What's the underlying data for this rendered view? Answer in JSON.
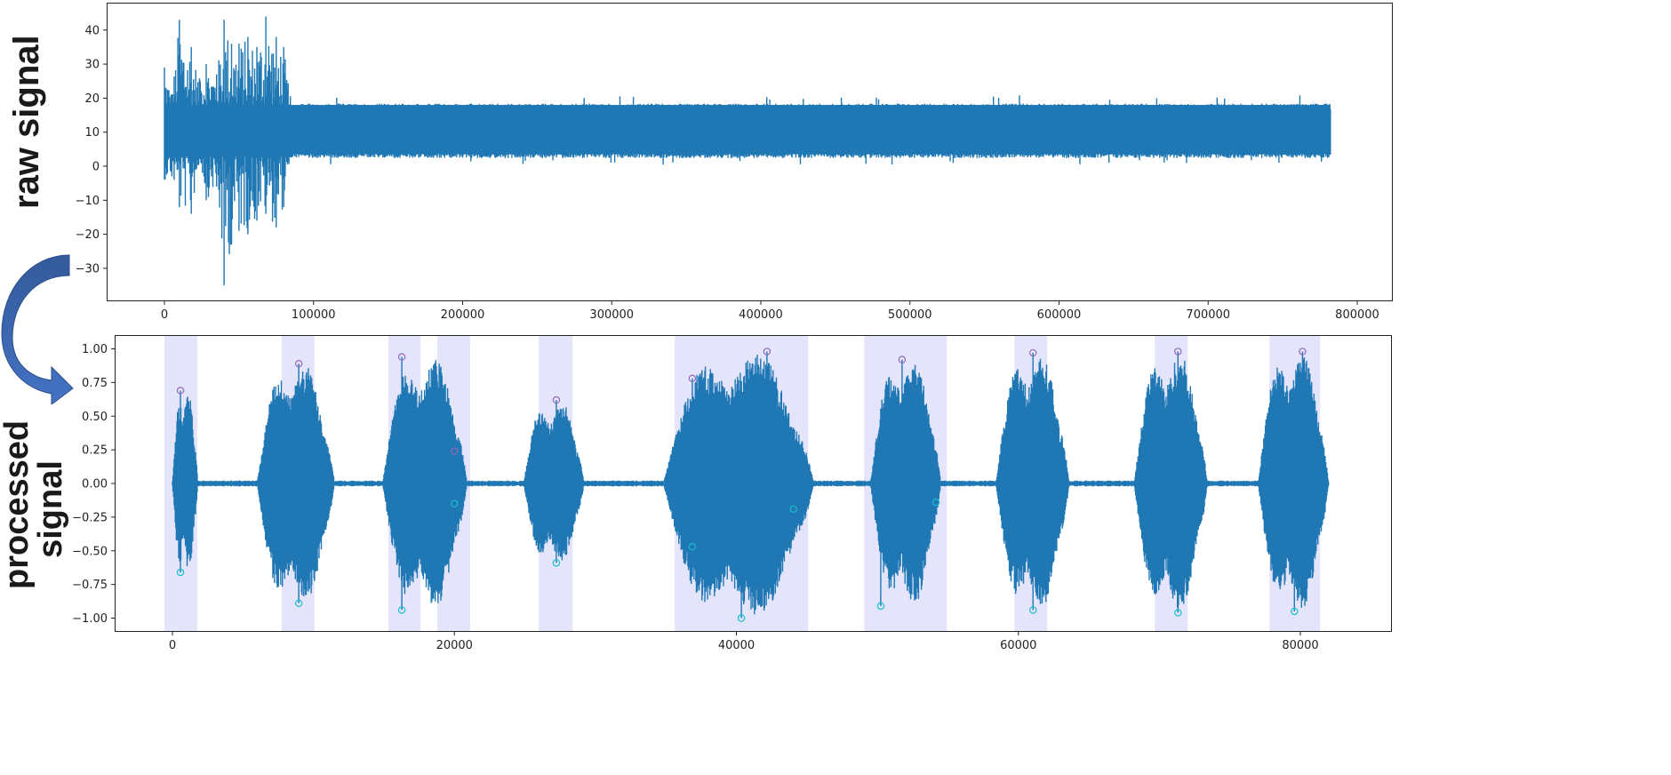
{
  "labels": {
    "raw": "raw signal",
    "processed_line1": "processed",
    "processed_line2": "signal"
  },
  "colors": {
    "signal": "#1f77b4",
    "band": "#e4e4fb",
    "peak_marker": "#9467bd",
    "trough_marker": "#17becf",
    "arrow_top": "#335a9a",
    "arrow_bottom": "#4472c4"
  },
  "chart_data": [
    {
      "type": "line",
      "title": "",
      "ylabel": "raw signal",
      "xlabel": "",
      "xlim": [
        -95000,
        822000
      ],
      "ylim": [
        -39,
        47
      ],
      "x_ticks": [
        0,
        100000,
        200000,
        300000,
        400000,
        500000,
        600000,
        700000,
        800000
      ],
      "x_tick_labels": [
        "0",
        "100000",
        "200000",
        "300000",
        "400000",
        "500000",
        "600000",
        "700000",
        "800000"
      ],
      "y_ticks": [
        40,
        30,
        20,
        10,
        0,
        -10,
        -20,
        -30
      ],
      "y_tick_labels": [
        "40",
        "30",
        "20",
        "10",
        "0",
        "−10",
        "−20",
        "−30"
      ],
      "grid": false,
      "series": [
        {
          "name": "raw signal",
          "x_range": [
            0,
            782000
          ],
          "baseline": 10,
          "envelope": [
            {
              "x": 0,
              "max": 29,
              "min": -4
            },
            {
              "x": 5000,
              "max": 21,
              "min": -3
            },
            {
              "x": 10000,
              "max": 43,
              "min": -12
            },
            {
              "x": 18000,
              "max": 35,
              "min": -14
            },
            {
              "x": 24000,
              "max": 25,
              "min": 2
            },
            {
              "x": 28000,
              "max": 30,
              "min": -10
            },
            {
              "x": 35000,
              "max": 27,
              "min": -6
            },
            {
              "x": 40000,
              "max": 43,
              "min": -35
            },
            {
              "x": 45000,
              "max": 36,
              "min": -23
            },
            {
              "x": 50000,
              "max": 36,
              "min": -19
            },
            {
              "x": 56000,
              "max": 38,
              "min": -20
            },
            {
              "x": 62000,
              "max": 35,
              "min": -16
            },
            {
              "x": 68000,
              "max": 44,
              "min": -14
            },
            {
              "x": 75000,
              "max": 38,
              "min": -18
            },
            {
              "x": 80000,
              "max": 35,
              "min": -12
            },
            {
              "x": 85000,
              "max": 19,
              "min": 3
            },
            {
              "x": 300000,
              "max": 18.5,
              "min": 3
            },
            {
              "x": 550000,
              "max": 21,
              "min": 2
            },
            {
              "x": 782000,
              "max": 19,
              "min": 1
            }
          ]
        }
      ]
    },
    {
      "type": "line",
      "title": "",
      "ylabel": "processed signal",
      "xlabel": "",
      "xlim": [
        -4100,
        86400
      ],
      "ylim": [
        -1.1,
        1.1
      ],
      "x_ticks": [
        0,
        20000,
        40000,
        60000,
        80000
      ],
      "x_tick_labels": [
        "0",
        "20000",
        "40000",
        "60000",
        "80000"
      ],
      "y_ticks": [
        1.0,
        0.75,
        0.5,
        0.25,
        0.0,
        -0.25,
        -0.5,
        -0.75,
        -1.0
      ],
      "y_tick_labels": [
        "1.00",
        "0.75",
        "0.50",
        "0.25",
        "0.00",
        "−0.25",
        "−0.50",
        "−0.75",
        "−1.00"
      ],
      "grid": false,
      "shaded_regions": [
        [
          -570,
          1760
        ],
        [
          7750,
          10080
        ],
        [
          15320,
          17590
        ],
        [
          18790,
          21120
        ],
        [
          25980,
          28380
        ],
        [
          35630,
          45090
        ],
        [
          49060,
          54930
        ],
        [
          59720,
          62050
        ],
        [
          69680,
          72010
        ],
        [
          77810,
          81400
        ]
      ],
      "peaks": [
        {
          "x": 570,
          "y": 0.69
        },
        {
          "x": 8960,
          "y": 0.89
        },
        {
          "x": 16270,
          "y": 0.94
        },
        {
          "x": 20000,
          "y": 0.24
        },
        {
          "x": 27230,
          "y": 0.62
        },
        {
          "x": 36870,
          "y": 0.78
        },
        {
          "x": 42170,
          "y": 0.98
        },
        {
          "x": 51750,
          "y": 0.92
        },
        {
          "x": 61040,
          "y": 0.97
        },
        {
          "x": 71320,
          "y": 0.98
        },
        {
          "x": 80150,
          "y": 0.98
        }
      ],
      "troughs": [
        {
          "x": 570,
          "y": -0.66
        },
        {
          "x": 8960,
          "y": -0.89
        },
        {
          "x": 16270,
          "y": -0.94
        },
        {
          "x": 20000,
          "y": -0.15
        },
        {
          "x": 27230,
          "y": -0.59
        },
        {
          "x": 36870,
          "y": -0.47
        },
        {
          "x": 40350,
          "y": -1.0
        },
        {
          "x": 44050,
          "y": -0.19
        },
        {
          "x": 50240,
          "y": -0.91
        },
        {
          "x": 54160,
          "y": -0.14
        },
        {
          "x": 61040,
          "y": -0.94
        },
        {
          "x": 71320,
          "y": -0.96
        },
        {
          "x": 79580,
          "y": -0.95
        }
      ],
      "series": [
        {
          "name": "processed signal",
          "x_range": [
            0,
            82000
          ],
          "bursts": [
            {
              "start": 0,
              "end": 1800,
              "max": 0.69,
              "min": -0.66
            },
            {
              "start": 6000,
              "end": 11500,
              "max": 0.89,
              "min": -0.89
            },
            {
              "start": 14900,
              "end": 20900,
              "max": 0.94,
              "min": -0.94
            },
            {
              "start": 24900,
              "end": 29200,
              "max": 0.62,
              "min": -0.59
            },
            {
              "start": 34800,
              "end": 45500,
              "max": 0.98,
              "min": -1.0
            },
            {
              "start": 49500,
              "end": 54500,
              "max": 0.92,
              "min": -0.91
            },
            {
              "start": 58400,
              "end": 63600,
              "max": 0.97,
              "min": -0.94
            },
            {
              "start": 68200,
              "end": 73400,
              "max": 0.98,
              "min": -0.96
            },
            {
              "start": 77000,
              "end": 82000,
              "max": 0.98,
              "min": -0.95
            }
          ]
        }
      ]
    }
  ]
}
